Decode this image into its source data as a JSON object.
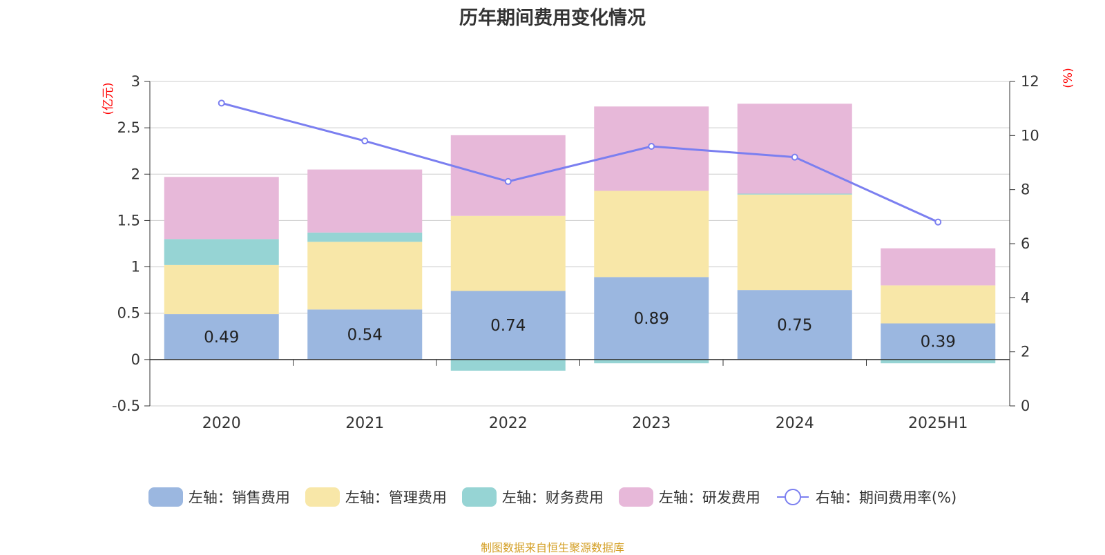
{
  "chart_data": {
    "type": "bar",
    "title": "历年期间费用变化情况",
    "categories": [
      "2020",
      "2021",
      "2022",
      "2023",
      "2024",
      "2025H1"
    ],
    "left_axis": {
      "unit": "(亿元)",
      "ylim": [
        -0.5,
        3
      ],
      "ticks": [
        "3",
        "2.5",
        "2",
        "1.5",
        "1",
        "0.5",
        "0",
        "-0.5"
      ]
    },
    "right_axis": {
      "unit": "(%)",
      "ylim": [
        0,
        12
      ],
      "ticks": [
        "12",
        "10",
        "8",
        "6",
        "4",
        "2",
        "0"
      ]
    },
    "series": [
      {
        "name": "左轴：销售费用",
        "axis": "left",
        "type": "bar",
        "color": "#9bb7e0",
        "values": [
          0.49,
          0.54,
          0.74,
          0.89,
          0.75,
          0.39
        ],
        "data_labels": [
          "0.49",
          "0.54",
          "0.74",
          "0.89",
          "0.75",
          "0.39"
        ]
      },
      {
        "name": "左轴：管理费用",
        "axis": "left",
        "type": "bar",
        "color": "#f8e7a8",
        "values": [
          0.53,
          0.73,
          0.81,
          0.93,
          1.03,
          0.41
        ]
      },
      {
        "name": "左轴：财务费用",
        "axis": "left",
        "type": "bar",
        "color": "#96d4d4",
        "values": [
          0.28,
          0.1,
          -0.12,
          -0.04,
          0.01,
          -0.04
        ]
      },
      {
        "name": "左轴：研发费用",
        "axis": "left",
        "type": "bar",
        "color": "#e7b8d9",
        "values": [
          0.67,
          0.68,
          0.87,
          0.91,
          0.97,
          0.4
        ]
      },
      {
        "name": "右轴：期间费用率(%)",
        "axis": "right",
        "type": "line",
        "color": "#7b7ff0",
        "values": [
          11.2,
          9.8,
          8.3,
          9.6,
          9.2,
          6.8
        ]
      }
    ],
    "grid": true,
    "legend": "bottom"
  },
  "source": "制图数据来自恒生聚源数据库"
}
